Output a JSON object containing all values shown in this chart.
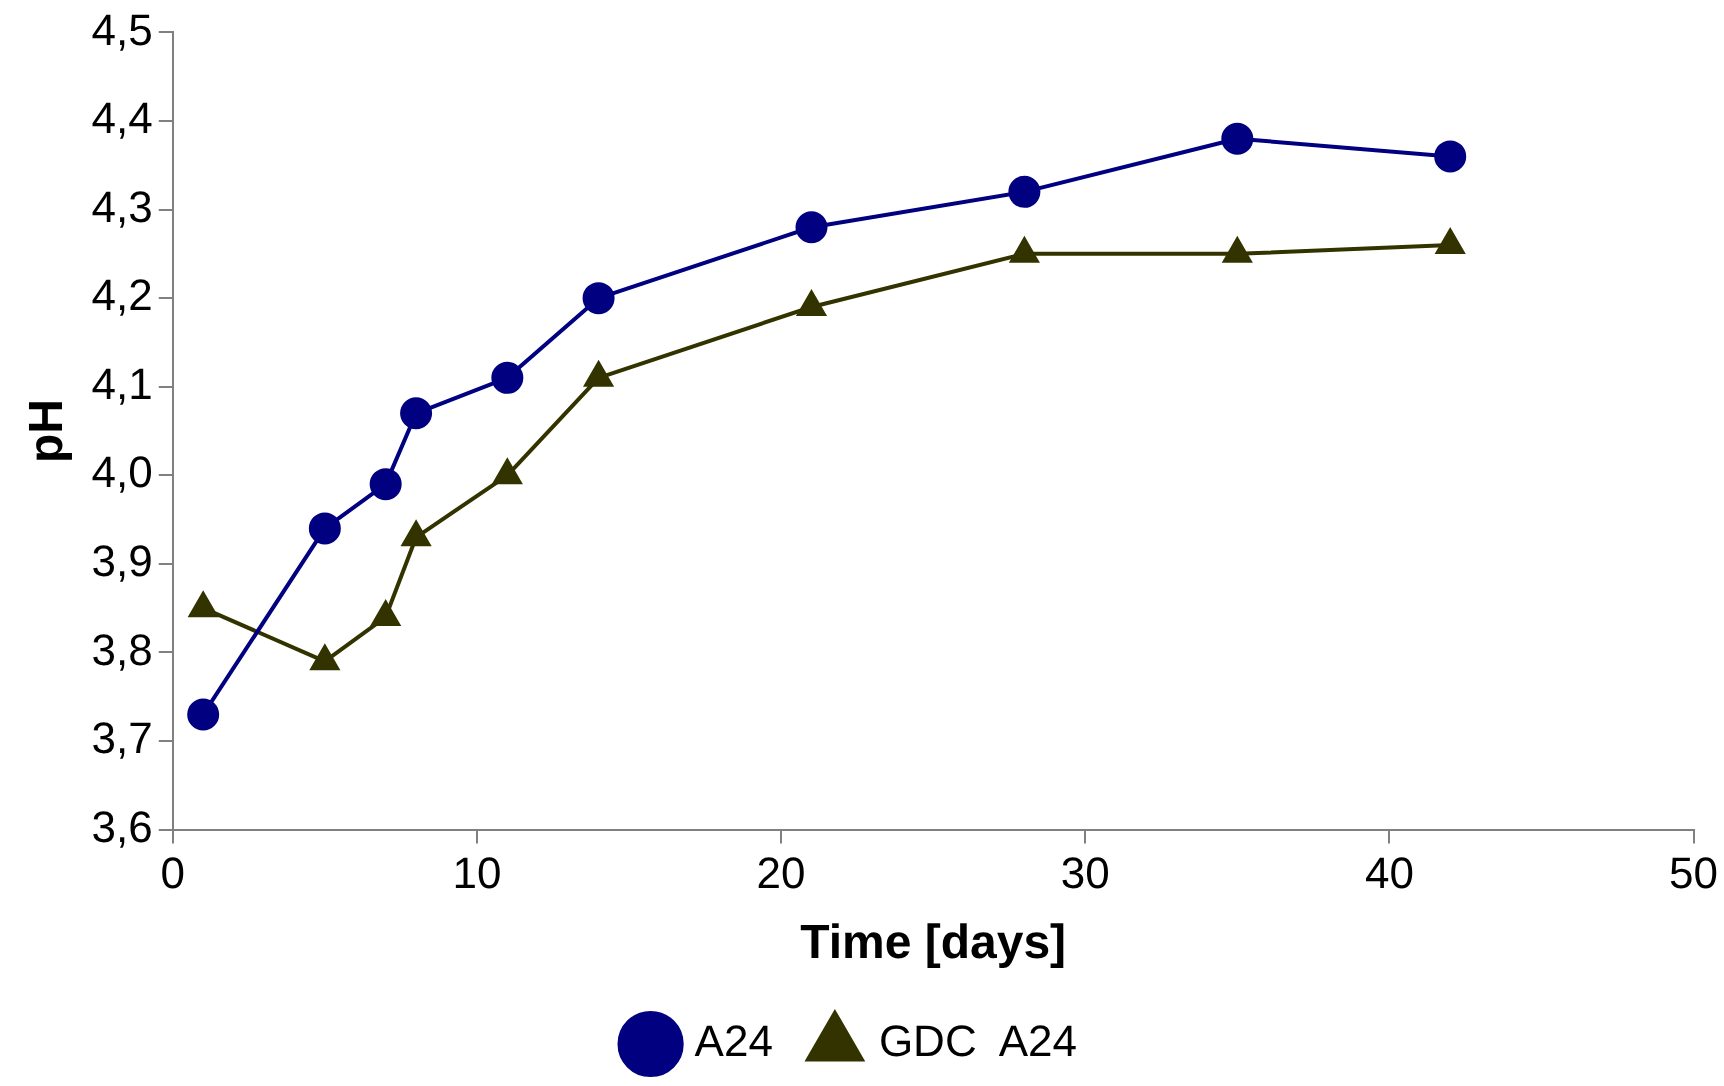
{
  "chart_data": {
    "type": "line",
    "xlabel": "Time [days]",
    "ylabel": "pH",
    "xlim": [
      0,
      50
    ],
    "xticks": [
      0,
      10,
      20,
      30,
      40,
      50
    ],
    "ylim": [
      3.6,
      4.5
    ],
    "yticks": [
      {
        "value": 3.6,
        "label": "3,6"
      },
      {
        "value": 3.7,
        "label": "3,7"
      },
      {
        "value": 3.8,
        "label": "3,8"
      },
      {
        "value": 3.9,
        "label": "3,9"
      },
      {
        "value": 4.0,
        "label": "4,0"
      },
      {
        "value": 4.1,
        "label": "4,1"
      },
      {
        "value": 4.2,
        "label": "4,2"
      },
      {
        "value": 4.3,
        "label": "4,3"
      },
      {
        "value": 4.4,
        "label": "4,4"
      },
      {
        "value": 4.5,
        "label": "4,5"
      }
    ],
    "x": [
      1,
      5,
      7,
      8,
      11,
      14,
      21,
      28,
      35,
      42
    ],
    "series": [
      {
        "name": "A24",
        "color": "#000080",
        "marker": "circle",
        "values": [
          3.73,
          3.94,
          3.99,
          4.07,
          4.11,
          4.2,
          4.28,
          4.32,
          4.38,
          4.36
        ]
      },
      {
        "name": "GDC  A24",
        "color": "#333300",
        "marker": "triangle",
        "values": [
          3.85,
          3.79,
          3.84,
          3.93,
          4.0,
          4.11,
          4.19,
          4.25,
          4.25,
          4.26
        ]
      }
    ],
    "grid": false,
    "legend": "bottom",
    "line_style": "solid"
  }
}
